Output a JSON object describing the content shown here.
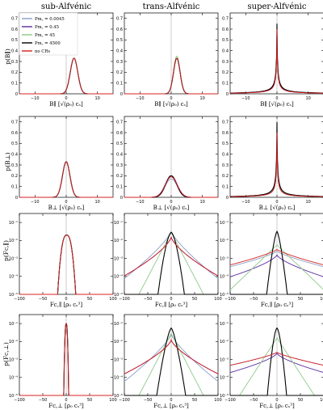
{
  "columns": [
    {
      "title": "sub-Alfvénic"
    },
    {
      "title": "trans-Alfvénic"
    },
    {
      "title": "super-Alfvénic"
    }
  ],
  "rows": [
    {
      "ylabel": "p(B∥)",
      "xlabel": "B∥ [√(ρ₀) cₛ]",
      "xlim": [
        -15,
        15
      ],
      "ylim": [
        0,
        0.75
      ],
      "yscale": "linear",
      "xticks": [
        -10,
        0,
        10
      ],
      "yticks": [
        0,
        0.1,
        0.2,
        0.3,
        0.4,
        0.5,
        0.6,
        0.7
      ]
    },
    {
      "ylabel": "p(B⊥)",
      "xlabel": "B⊥ [√(ρ₀) cₛ]",
      "xlim": [
        -15,
        15
      ],
      "ylim": [
        0,
        0.75
      ],
      "yscale": "linear",
      "xticks": [
        -10,
        0,
        10
      ],
      "yticks": [
        0,
        0.1,
        0.2,
        0.3,
        0.4,
        0.5,
        0.6,
        0.7
      ]
    },
    {
      "ylabel": "p(Fc,∥)",
      "xlabel": "Fc,∥ [ρ₀ cₛ³]",
      "xlim": [
        -100,
        100
      ],
      "ylim": [
        -5,
        -0.5
      ],
      "yscale": "log",
      "xticks": [
        -100,
        -50,
        0,
        50,
        100
      ],
      "yticks": [
        -1,
        -2,
        -3,
        -4,
        -5
      ],
      "ytick_labels": [
        "10⁻¹",
        "10⁻²",
        "10⁻³",
        "10⁻⁴",
        "10⁻⁵"
      ]
    },
    {
      "ylabel": "p(Fc,⊥)",
      "xlabel": "Fc,⊥ [ρ₀ cₛ³]",
      "xlim": [
        -100,
        100
      ],
      "ylim": [
        -5,
        -0.5
      ],
      "yscale": "log",
      "xticks": [
        -100,
        -50,
        0,
        50,
        100
      ],
      "yticks": [
        -1,
        -2,
        -3,
        -4,
        -5
      ],
      "ytick_labels": [
        "10⁻¹",
        "10⁻²",
        "10⁻³",
        "10⁻⁴",
        "10⁻⁵"
      ]
    }
  ],
  "legend": {
    "location": "top-left of first panel",
    "entries": [
      {
        "label": "Pm꜀ = 0.0045",
        "color": "#8aa0c8"
      },
      {
        "label": "Pm꜀ = 0.45",
        "color": "#5a2ca0"
      },
      {
        "label": "Pm꜀ = 45",
        "color": "#8fc88a"
      },
      {
        "label": "Pm꜀ = 4500",
        "color": "#000000"
      },
      {
        "label": "no CRs",
        "color": "#d62020"
      }
    ]
  },
  "chart_data": {
    "type": "line",
    "layout": "4 rows x 3 columns",
    "series_colors": [
      "#8aa0c8",
      "#5a2ca0",
      "#8fc88a",
      "#000000",
      "#d62020"
    ],
    "panels": [
      {
        "row": 0,
        "col": 0,
        "model": "gauss",
        "params": [
          [
            2.5,
            1.2,
            0.33
          ],
          [
            2.5,
            1.2,
            0.33
          ],
          [
            2.5,
            1.2,
            0.33
          ],
          [
            2.5,
            1.2,
            0.33
          ],
          [
            2.5,
            1.2,
            0.33
          ]
        ]
      },
      {
        "row": 0,
        "col": 1,
        "model": "gauss",
        "params": [
          [
            1.8,
            1.05,
            0.33
          ],
          [
            1.8,
            1.05,
            0.33
          ],
          [
            1.8,
            1.05,
            0.35
          ],
          [
            1.8,
            1.05,
            0.33
          ],
          [
            1.8,
            1.05,
            0.33
          ]
        ]
      },
      {
        "row": 0,
        "col": 2,
        "model": "cusp",
        "params": [
          [
            0.15,
            0.62
          ],
          [
            0.2,
            0.58
          ],
          [
            0.2,
            0.52
          ],
          [
            0.17,
            0.65
          ],
          [
            0.15,
            0.6
          ]
        ]
      },
      {
        "row": 1,
        "col": 0,
        "model": "gauss",
        "params": [
          [
            0,
            1.2,
            0.33
          ],
          [
            0,
            1.2,
            0.33
          ],
          [
            0,
            1.2,
            0.33
          ],
          [
            0,
            1.2,
            0.33
          ],
          [
            0,
            1.2,
            0.33
          ]
        ]
      },
      {
        "row": 1,
        "col": 1,
        "model": "gauss",
        "params": [
          [
            0,
            2.0,
            0.17
          ],
          [
            0,
            1.9,
            0.2
          ],
          [
            0,
            1.85,
            0.19
          ],
          [
            0,
            1.75,
            0.2
          ],
          [
            0,
            1.9,
            0.19
          ]
        ]
      },
      {
        "row": 1,
        "col": 2,
        "model": "cusp",
        "params": [
          [
            0.15,
            0.6
          ],
          [
            0.2,
            0.58
          ],
          [
            0.25,
            0.44
          ],
          [
            0.17,
            0.7
          ],
          [
            0.15,
            0.6
          ]
        ]
      },
      {
        "row": 2,
        "col": 0,
        "model": "logpeak",
        "params": [
          [
            1,
            -1.7,
            12,
            2.5
          ],
          [
            1,
            -1.7,
            12,
            2.5
          ],
          [
            1,
            -1.7,
            12,
            2.5
          ],
          [
            1,
            -1.7,
            12,
            2.5
          ],
          [
            1,
            -1.7,
            12,
            2.5
          ]
        ]
      },
      {
        "row": 2,
        "col": 1,
        "model": "logpeak",
        "params": [
          [
            0,
            -1.5,
            30,
            0.8
          ],
          [
            0,
            -1.8,
            33,
            0.7
          ],
          [
            0,
            -1.55,
            20,
            1.0
          ],
          [
            0,
            -1.55,
            13,
            1.6
          ],
          [
            0,
            -1.8,
            33,
            0.7
          ]
        ]
      },
      {
        "row": 2,
        "col": 2,
        "model": "logpeak",
        "params": [
          [
            0,
            -2.6,
            120,
            0.8
          ],
          [
            0,
            -2.8,
            75,
            0.7
          ],
          [
            0,
            -2.25,
            40,
            1.0
          ],
          [
            0,
            -1.5,
            9,
            1.4
          ],
          [
            0,
            -2.5,
            120,
            0.8
          ]
        ]
      },
      {
        "row": 3,
        "col": 0,
        "model": "logpeak",
        "params": [
          [
            0,
            -1.0,
            3,
            2.5
          ],
          [
            0,
            -1.0,
            3,
            2.5
          ],
          [
            0,
            -1.0,
            3,
            2.5
          ],
          [
            0,
            -1.0,
            3,
            2.5
          ],
          [
            0,
            -1.0,
            3,
            2.5
          ]
        ]
      },
      {
        "row": 3,
        "col": 1,
        "model": "logpeak",
        "params": [
          [
            0,
            -1.6,
            30,
            0.8
          ],
          [
            0,
            -1.9,
            40,
            0.7
          ],
          [
            0,
            -1.55,
            20,
            1.0
          ],
          [
            0,
            -1.25,
            12,
            1.4
          ],
          [
            0,
            -1.9,
            40,
            0.7
          ]
        ]
      },
      {
        "row": 3,
        "col": 2,
        "model": "logpeak",
        "params": [
          [
            0,
            -2.6,
            150,
            0.8
          ],
          [
            0,
            -2.65,
            90,
            0.7
          ],
          [
            0,
            -1.8,
            25,
            1.0
          ],
          [
            0,
            -1.25,
            9,
            1.6
          ],
          [
            0,
            -2.6,
            150,
            0.8
          ]
        ]
      }
    ]
  }
}
